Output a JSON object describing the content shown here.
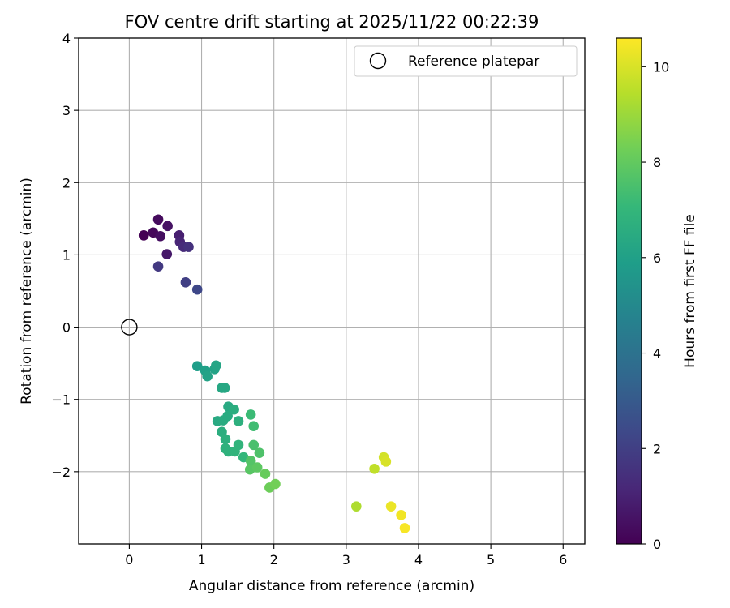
{
  "chart_data": {
    "type": "scatter",
    "title": "FOV centre drift starting at 2025/11/22 00:22:39",
    "xlabel": "Angular distance from reference (arcmin)",
    "ylabel": "Rotation from reference (arcmin)",
    "xlim": [
      -0.7,
      6.3
    ],
    "ylim": [
      -3.0,
      4.0
    ],
    "xticks": [
      0,
      1,
      2,
      3,
      4,
      5,
      6
    ],
    "yticks": [
      -2,
      -1,
      0,
      1,
      2,
      3,
      4
    ],
    "xtick_labels": [
      "0",
      "1",
      "2",
      "3",
      "4",
      "5",
      "6"
    ],
    "ytick_labels": [
      "−2",
      "−1",
      "0",
      "1",
      "2",
      "3",
      "4"
    ],
    "grid": true,
    "legend": {
      "position": "top-right",
      "entries": [
        "Reference platepar"
      ]
    },
    "reference_point": {
      "name": "Reference platepar",
      "x": 0.0,
      "y": 0.0
    },
    "colorbar": {
      "label": "Hours from first FF file",
      "range": [
        0,
        10.6
      ],
      "ticks": [
        0,
        2,
        4,
        6,
        8,
        10
      ],
      "tick_labels": [
        "0",
        "2",
        "4",
        "6",
        "8",
        "10"
      ],
      "colormap": "viridis",
      "colormap_stops": [
        "#440154",
        "#482878",
        "#3e4989",
        "#31688e",
        "#26828e",
        "#1f9e89",
        "#35b779",
        "#6ece58",
        "#b5de2b",
        "#fde725"
      ]
    },
    "series": [
      {
        "name": "FOV centre drift",
        "points": [
          {
            "x": 0.2,
            "y": 1.27,
            "t": 0.0
          },
          {
            "x": 0.33,
            "y": 1.31,
            "t": 0.2
          },
          {
            "x": 0.4,
            "y": 1.49,
            "t": 0.3
          },
          {
            "x": 0.43,
            "y": 1.26,
            "t": 0.4
          },
          {
            "x": 0.53,
            "y": 1.4,
            "t": 0.5
          },
          {
            "x": 0.52,
            "y": 1.01,
            "t": 0.7
          },
          {
            "x": 0.69,
            "y": 1.27,
            "t": 0.9
          },
          {
            "x": 0.7,
            "y": 1.18,
            "t": 1.1
          },
          {
            "x": 0.75,
            "y": 1.11,
            "t": 1.3
          },
          {
            "x": 0.82,
            "y": 1.11,
            "t": 1.5
          },
          {
            "x": 0.4,
            "y": 0.84,
            "t": 1.8
          },
          {
            "x": 0.78,
            "y": 0.62,
            "t": 2.0
          },
          {
            "x": 0.94,
            "y": 0.52,
            "t": 2.3
          },
          {
            "x": 0.94,
            "y": -0.54,
            "t": 5.9
          },
          {
            "x": 1.05,
            "y": -0.6,
            "t": 6.0
          },
          {
            "x": 1.08,
            "y": -0.68,
            "t": 6.1
          },
          {
            "x": 1.18,
            "y": -0.58,
            "t": 6.1
          },
          {
            "x": 1.2,
            "y": -0.53,
            "t": 6.2
          },
          {
            "x": 1.28,
            "y": -0.84,
            "t": 6.3
          },
          {
            "x": 1.32,
            "y": -0.84,
            "t": 6.3
          },
          {
            "x": 1.37,
            "y": -1.1,
            "t": 6.4
          },
          {
            "x": 1.22,
            "y": -1.3,
            "t": 6.4
          },
          {
            "x": 1.3,
            "y": -1.29,
            "t": 6.5
          },
          {
            "x": 1.36,
            "y": -1.23,
            "t": 6.5
          },
          {
            "x": 1.45,
            "y": -1.14,
            "t": 6.6
          },
          {
            "x": 1.28,
            "y": -1.45,
            "t": 6.6
          },
          {
            "x": 1.33,
            "y": -1.55,
            "t": 6.7
          },
          {
            "x": 1.51,
            "y": -1.3,
            "t": 6.7
          },
          {
            "x": 1.33,
            "y": -1.68,
            "t": 6.8
          },
          {
            "x": 1.37,
            "y": -1.72,
            "t": 6.8
          },
          {
            "x": 1.46,
            "y": -1.72,
            "t": 6.9
          },
          {
            "x": 1.51,
            "y": -1.63,
            "t": 6.9
          },
          {
            "x": 1.58,
            "y": -1.8,
            "t": 7.0
          },
          {
            "x": 1.68,
            "y": -1.21,
            "t": 7.2
          },
          {
            "x": 1.72,
            "y": -1.37,
            "t": 7.3
          },
          {
            "x": 1.72,
            "y": -1.63,
            "t": 7.5
          },
          {
            "x": 1.8,
            "y": -1.74,
            "t": 7.6
          },
          {
            "x": 1.68,
            "y": -1.85,
            "t": 7.7
          },
          {
            "x": 1.67,
            "y": -1.97,
            "t": 7.8
          },
          {
            "x": 1.77,
            "y": -1.94,
            "t": 7.9
          },
          {
            "x": 1.88,
            "y": -2.03,
            "t": 8.1
          },
          {
            "x": 1.94,
            "y": -2.22,
            "t": 8.2
          },
          {
            "x": 2.02,
            "y": -2.17,
            "t": 8.3
          },
          {
            "x": 3.14,
            "y": -2.48,
            "t": 9.3
          },
          {
            "x": 3.39,
            "y": -1.96,
            "t": 9.6
          },
          {
            "x": 3.52,
            "y": -1.8,
            "t": 9.9
          },
          {
            "x": 3.55,
            "y": -1.86,
            "t": 10.0
          },
          {
            "x": 3.62,
            "y": -2.48,
            "t": 10.3
          },
          {
            "x": 3.76,
            "y": -2.6,
            "t": 10.4
          },
          {
            "x": 3.81,
            "y": -2.78,
            "t": 10.5
          }
        ]
      }
    ]
  }
}
